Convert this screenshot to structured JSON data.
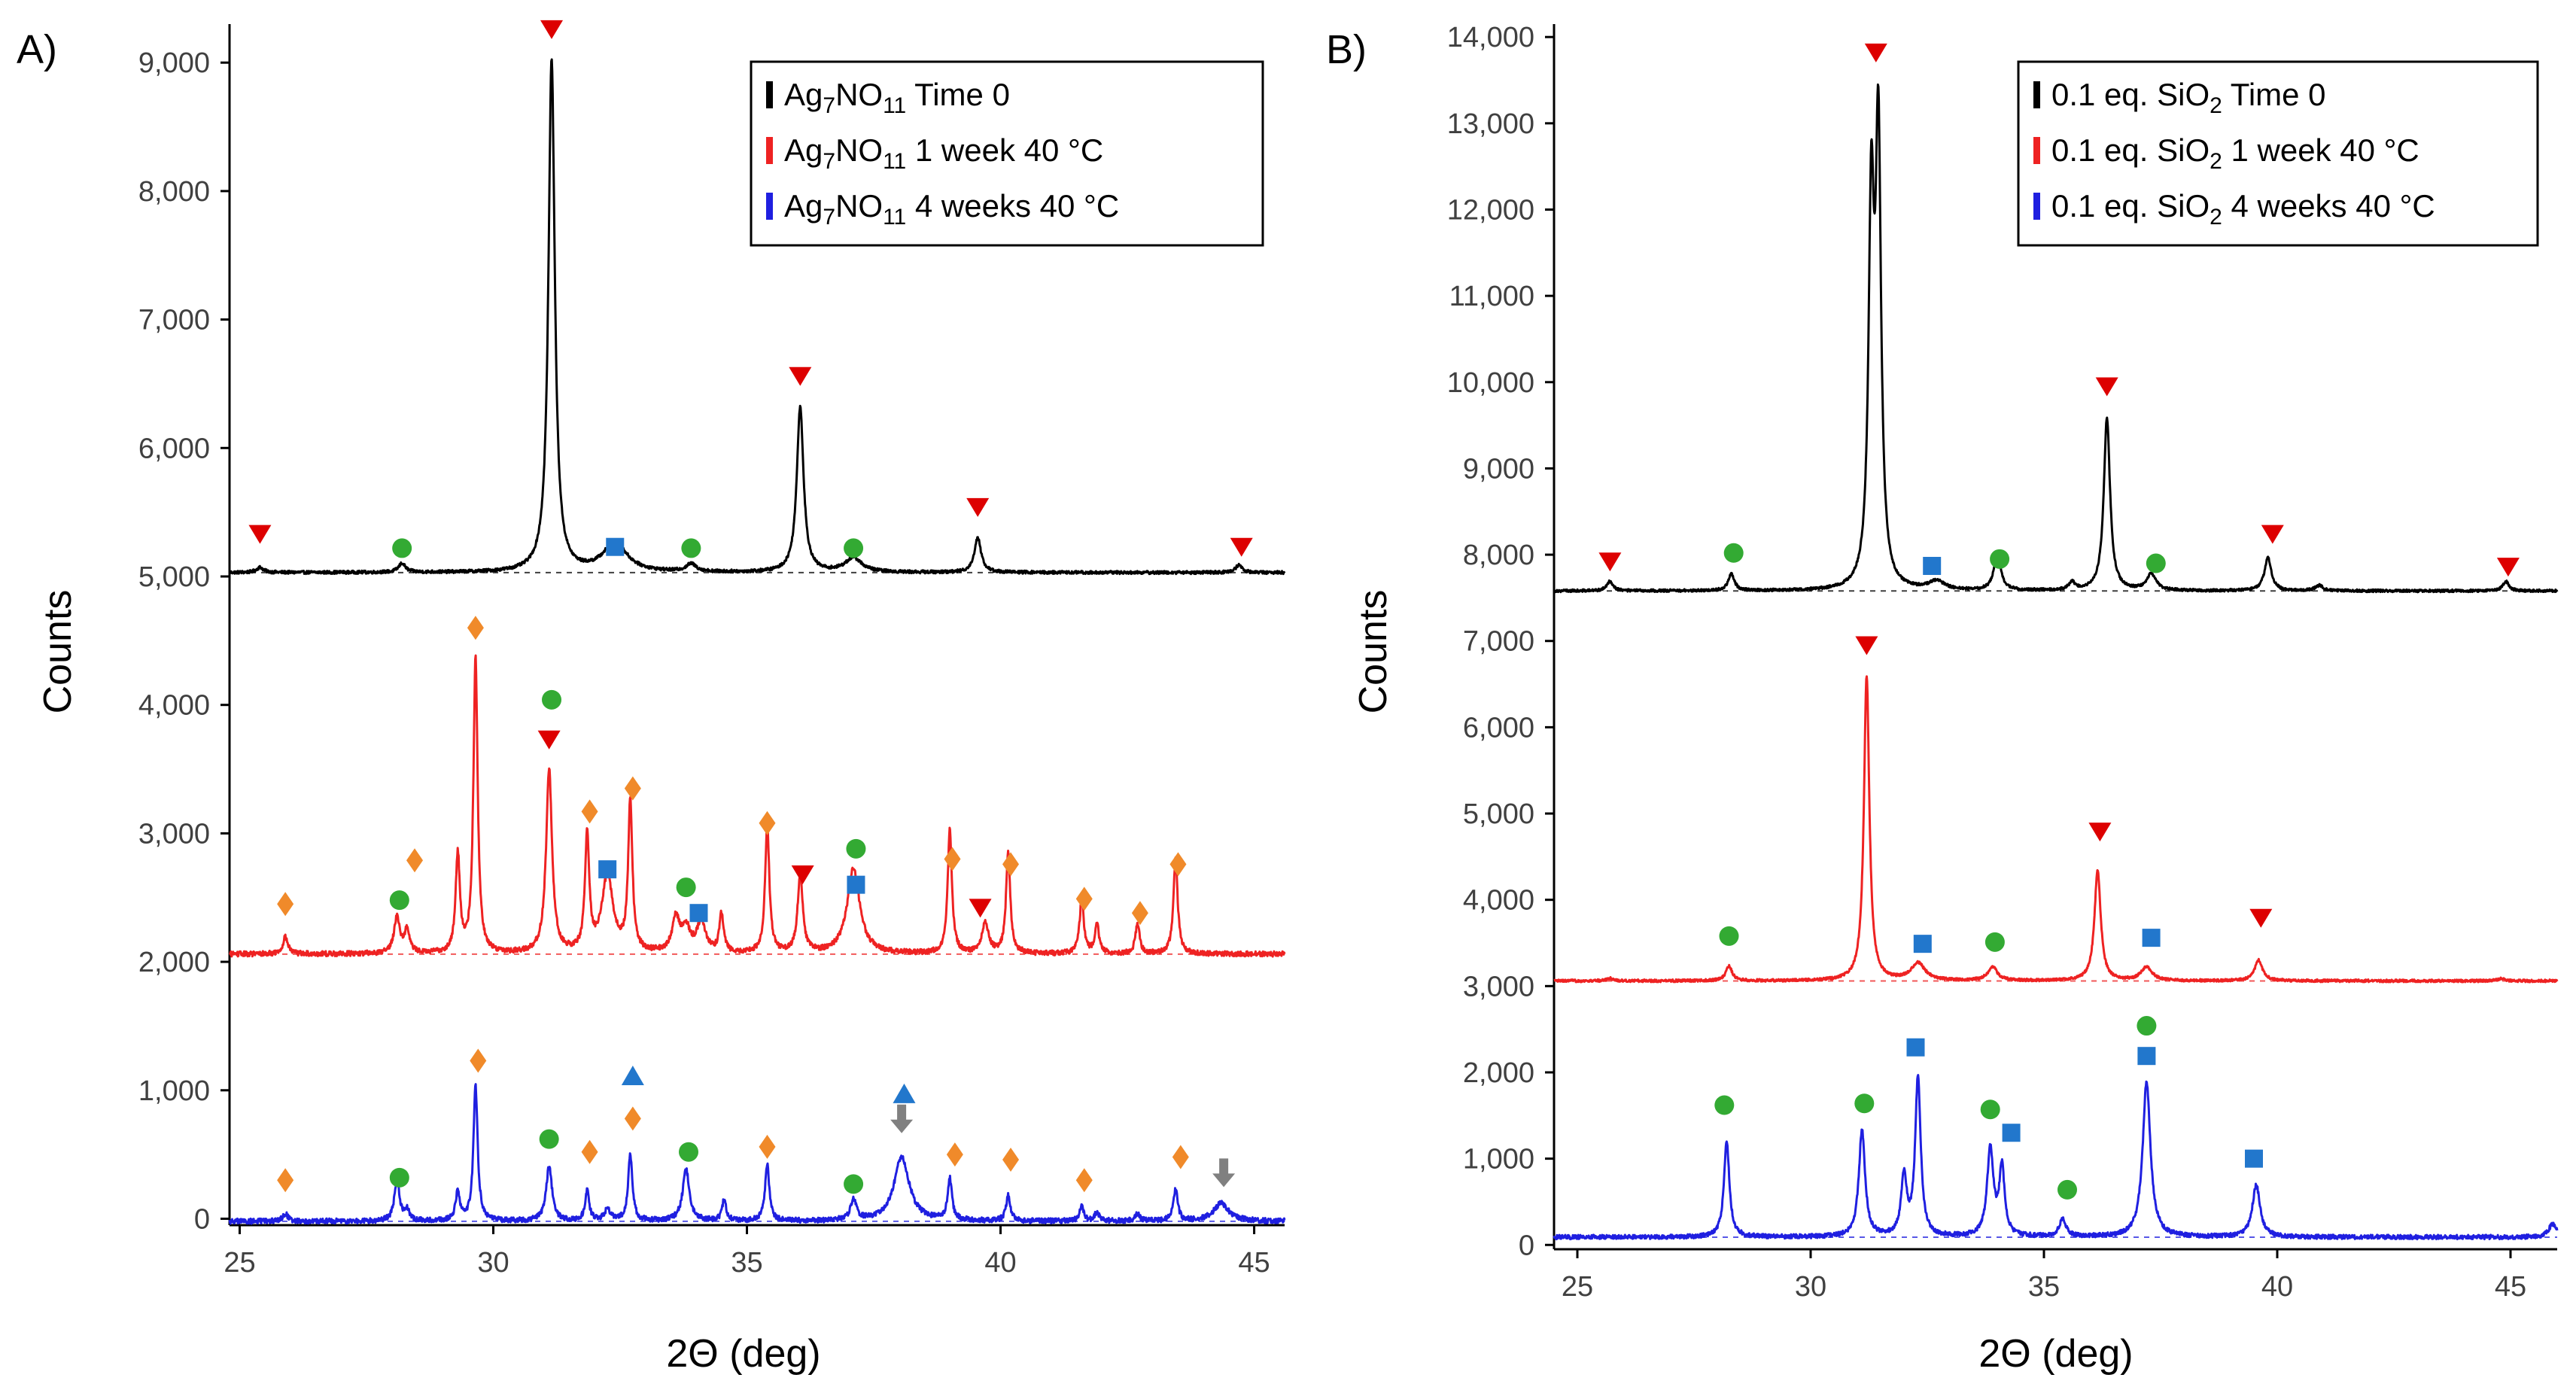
{
  "figure": "Powder X-ray diffraction patterns",
  "chart_data": [
    {
      "panel": "A)",
      "type": "line",
      "xlabel": "2Θ (deg)",
      "ylabel": "Counts",
      "xlim": [
        24.8,
        45.6
      ],
      "ylim": [
        -50,
        9300
      ],
      "xticks": [
        25,
        30,
        35,
        40,
        45
      ],
      "yticks": [
        0,
        1000,
        2000,
        3000,
        4000,
        5000,
        6000,
        7000,
        8000,
        9000
      ],
      "ytick_labels": [
        "0",
        "1,000",
        "2,000",
        "3,000",
        "4,000",
        "5,000",
        "6,000",
        "7,000",
        "8,000",
        "9,000"
      ],
      "legend": {
        "position": "top-right",
        "entries": [
          {
            "prefix": "Ag",
            "sub1": "7",
            "mid": "NO",
            "sub2": "11",
            "suffix": " Time 0",
            "color": "#000000"
          },
          {
            "prefix": "Ag",
            "sub1": "7",
            "mid": "NO",
            "sub2": "11",
            "suffix": " 1 week 40 °C",
            "color": "#ee2222"
          },
          {
            "prefix": "Ag",
            "sub1": "7",
            "mid": "NO",
            "sub2": "11",
            "suffix": " 4 weeks 40 °C",
            "color": "#1f1fe0"
          }
        ]
      },
      "series": [
        {
          "name": "Ag7NO11 Time 0",
          "color": "#000000",
          "baseline": 5030,
          "noise": 12,
          "peaks": [
            [
              25.4,
              40,
              0.08
            ],
            [
              28.2,
              70,
              0.08
            ],
            [
              31.15,
              3990,
              0.075
            ],
            [
              32.4,
              230,
              0.28
            ],
            [
              33.9,
              60,
              0.12
            ],
            [
              36.05,
              1290,
              0.08
            ],
            [
              37.1,
              110,
              0.2
            ],
            [
              39.55,
              270,
              0.08
            ],
            [
              44.7,
              60,
              0.08
            ]
          ]
        },
        {
          "name": "Ag7NO11 1 week 40 °C",
          "color": "#ee2222",
          "baseline": 2060,
          "noise": 20,
          "peaks": [
            [
              25.9,
              130,
              0.06
            ],
            [
              28.1,
              280,
              0.07
            ],
            [
              28.3,
              180,
              0.06
            ],
            [
              29.3,
              760,
              0.05
            ],
            [
              29.65,
              2300,
              0.05
            ],
            [
              31.1,
              1430,
              0.07
            ],
            [
              31.85,
              900,
              0.05
            ],
            [
              32.25,
              600,
              0.13
            ],
            [
              32.7,
              1160,
              0.05
            ],
            [
              33.6,
              260,
              0.09
            ],
            [
              33.8,
              180,
              0.1
            ],
            [
              34.1,
              240,
              0.1
            ],
            [
              34.5,
              300,
              0.05
            ],
            [
              35.4,
              1000,
              0.05
            ],
            [
              36.05,
              610,
              0.06
            ],
            [
              37.1,
              660,
              0.15
            ],
            [
              39.0,
              960,
              0.05
            ],
            [
              39.7,
              230,
              0.08
            ],
            [
              40.15,
              780,
              0.05
            ],
            [
              41.6,
              420,
              0.05
            ],
            [
              41.9,
              230,
              0.05
            ],
            [
              42.7,
              230,
              0.05
            ],
            [
              43.45,
              740,
              0.05
            ]
          ]
        },
        {
          "name": "Ag7NO11 4 weeks 40 °C",
          "color": "#1f1fe0",
          "baseline": -20,
          "noise": 20,
          "peaks": [
            [
              25.9,
              60,
              0.06
            ],
            [
              28.1,
              320,
              0.06
            ],
            [
              28.3,
              80,
              0.06
            ],
            [
              29.3,
              230,
              0.05
            ],
            [
              29.65,
              1050,
              0.05
            ],
            [
              31.1,
              420,
              0.07
            ],
            [
              31.85,
              230,
              0.05
            ],
            [
              32.25,
              90,
              0.07
            ],
            [
              32.7,
              520,
              0.05
            ],
            [
              33.8,
              400,
              0.08
            ],
            [
              34.55,
              160,
              0.05
            ],
            [
              35.4,
              440,
              0.05
            ],
            [
              37.1,
              160,
              0.07
            ],
            [
              38.05,
              500,
              0.18
            ],
            [
              39.0,
              320,
              0.05
            ],
            [
              40.15,
              200,
              0.05
            ],
            [
              41.6,
              110,
              0.05
            ],
            [
              41.9,
              70,
              0.05
            ],
            [
              42.7,
              60,
              0.05
            ],
            [
              43.45,
              250,
              0.05
            ],
            [
              44.35,
              140,
              0.18
            ]
          ]
        }
      ],
      "markers": [
        {
          "t": "tri-down",
          "c": "#dd0000",
          "x": 25.4,
          "y": 5330
        },
        {
          "t": "circle",
          "c": "#33aa33",
          "x": 28.2,
          "y": 5220
        },
        {
          "t": "tri-down",
          "c": "#dd0000",
          "x": 31.15,
          "y": 9260
        },
        {
          "t": "square",
          "c": "#2277cc",
          "x": 32.4,
          "y": 5230
        },
        {
          "t": "circle",
          "c": "#33aa33",
          "x": 33.9,
          "y": 5220
        },
        {
          "t": "tri-down",
          "c": "#dd0000",
          "x": 36.05,
          "y": 6560
        },
        {
          "t": "circle",
          "c": "#33aa33",
          "x": 37.1,
          "y": 5220
        },
        {
          "t": "tri-down",
          "c": "#dd0000",
          "x": 39.55,
          "y": 5540
        },
        {
          "t": "tri-down",
          "c": "#dd0000",
          "x": 44.75,
          "y": 5230
        },
        {
          "t": "diamond",
          "c": "#f08a2a",
          "x": 25.9,
          "y": 2450
        },
        {
          "t": "circle",
          "c": "#33aa33",
          "x": 28.15,
          "y": 2480
        },
        {
          "t": "diamond",
          "c": "#f08a2a",
          "x": 28.45,
          "y": 2790
        },
        {
          "t": "diamond",
          "c": "#f08a2a",
          "x": 29.65,
          "y": 4600
        },
        {
          "t": "circle",
          "c": "#33aa33",
          "x": 31.15,
          "y": 4040
        },
        {
          "t": "tri-down",
          "c": "#dd0000",
          "x": 31.1,
          "y": 3730
        },
        {
          "t": "diamond",
          "c": "#f08a2a",
          "x": 31.9,
          "y": 3170
        },
        {
          "t": "square",
          "c": "#2277cc",
          "x": 32.25,
          "y": 2720
        },
        {
          "t": "diamond",
          "c": "#f08a2a",
          "x": 32.75,
          "y": 3350
        },
        {
          "t": "circle",
          "c": "#33aa33",
          "x": 33.8,
          "y": 2580
        },
        {
          "t": "square",
          "c": "#2277cc",
          "x": 34.05,
          "y": 2380
        },
        {
          "t": "diamond",
          "c": "#f08a2a",
          "x": 35.4,
          "y": 3080
        },
        {
          "t": "tri-down",
          "c": "#dd0000",
          "x": 36.1,
          "y": 2680
        },
        {
          "t": "circle",
          "c": "#33aa33",
          "x": 37.15,
          "y": 2880
        },
        {
          "t": "square",
          "c": "#2277cc",
          "x": 37.15,
          "y": 2600
        },
        {
          "t": "diamond",
          "c": "#f08a2a",
          "x": 39.05,
          "y": 2800
        },
        {
          "t": "tri-down",
          "c": "#dd0000",
          "x": 39.6,
          "y": 2420
        },
        {
          "t": "diamond",
          "c": "#f08a2a",
          "x": 40.2,
          "y": 2760
        },
        {
          "t": "diamond",
          "c": "#f08a2a",
          "x": 41.65,
          "y": 2490
        },
        {
          "t": "diamond",
          "c": "#f08a2a",
          "x": 42.75,
          "y": 2380
        },
        {
          "t": "diamond",
          "c": "#f08a2a",
          "x": 43.5,
          "y": 2760
        },
        {
          "t": "diamond",
          "c": "#f08a2a",
          "x": 25.9,
          "y": 300
        },
        {
          "t": "circle",
          "c": "#33aa33",
          "x": 28.15,
          "y": 320
        },
        {
          "t": "diamond",
          "c": "#f08a2a",
          "x": 29.7,
          "y": 1230
        },
        {
          "t": "circle",
          "c": "#33aa33",
          "x": 31.1,
          "y": 620
        },
        {
          "t": "diamond",
          "c": "#f08a2a",
          "x": 31.9,
          "y": 520
        },
        {
          "t": "tri-up",
          "c": "#2277cc",
          "x": 32.75,
          "y": 1110
        },
        {
          "t": "diamond",
          "c": "#f08a2a",
          "x": 32.75,
          "y": 780
        },
        {
          "t": "circle",
          "c": "#33aa33",
          "x": 33.85,
          "y": 520
        },
        {
          "t": "diamond",
          "c": "#f08a2a",
          "x": 35.4,
          "y": 560
        },
        {
          "t": "circle",
          "c": "#33aa33",
          "x": 37.1,
          "y": 270
        },
        {
          "t": "tri-up",
          "c": "#2277cc",
          "x": 38.1,
          "y": 970
        },
        {
          "t": "arrow-down",
          "c": "#808080",
          "x": 38.05,
          "y": 760
        },
        {
          "t": "diamond",
          "c": "#f08a2a",
          "x": 39.1,
          "y": 500
        },
        {
          "t": "diamond",
          "c": "#f08a2a",
          "x": 40.2,
          "y": 460
        },
        {
          "t": "diamond",
          "c": "#f08a2a",
          "x": 41.65,
          "y": 300
        },
        {
          "t": "diamond",
          "c": "#f08a2a",
          "x": 43.55,
          "y": 480
        },
        {
          "t": "arrow-down",
          "c": "#808080",
          "x": 44.4,
          "y": 340
        }
      ]
    },
    {
      "panel": "B)",
      "type": "line",
      "xlabel": "2Θ (deg)",
      "ylabel": "Counts",
      "xlim": [
        24.5,
        46.0
      ],
      "ylim": [
        -50,
        14150
      ],
      "xticks": [
        25,
        30,
        35,
        40,
        45
      ],
      "yticks": [
        0,
        1000,
        2000,
        3000,
        4000,
        5000,
        6000,
        7000,
        8000,
        9000,
        10000,
        11000,
        12000,
        13000,
        14000
      ],
      "ytick_labels": [
        "0",
        "1,000",
        "2,000",
        "3,000",
        "4,000",
        "5,000",
        "6,000",
        "7,000",
        "8,000",
        "9,000",
        "10,000",
        "11,000",
        "12,000",
        "13,000",
        "14,000"
      ],
      "legend": {
        "position": "top-right",
        "entries": [
          {
            "prefix": "0.1 eq. SiO",
            "sub1": "2",
            "mid": "",
            "sub2": "",
            "suffix": " Time 0",
            "color": "#000000"
          },
          {
            "prefix": "0.1 eq. SiO",
            "sub1": "2",
            "mid": "",
            "sub2": "",
            "suffix": " 1 week 40 °C",
            "color": "#ee2222"
          },
          {
            "prefix": "0.1 eq. SiO",
            "sub1": "2",
            "mid": "",
            "sub2": "",
            "suffix": " 4 weeks 40 °C",
            "color": "#1f1fe0"
          }
        ]
      },
      "series": [
        {
          "name": "0.1 eq. SiO2 Time 0",
          "color": "#000000",
          "baseline": 7580,
          "noise": 15,
          "peaks": [
            [
              25.7,
              110,
              0.08
            ],
            [
              28.3,
              190,
              0.08
            ],
            [
              31.3,
              4300,
              0.07
            ],
            [
              31.45,
              5100,
              0.07
            ],
            [
              32.7,
              100,
              0.2
            ],
            [
              34.0,
              410,
              0.09
            ],
            [
              35.6,
              90,
              0.08
            ],
            [
              36.35,
              2000,
              0.08
            ],
            [
              37.3,
              190,
              0.12
            ],
            [
              39.8,
              380,
              0.09
            ],
            [
              40.9,
              60,
              0.1
            ],
            [
              44.9,
              110,
              0.08
            ]
          ]
        },
        {
          "name": "0.1 eq. SiO2 1 week 40 °C",
          "color": "#ee2222",
          "baseline": 3060,
          "noise": 15,
          "peaks": [
            [
              25.7,
              30,
              0.08
            ],
            [
              28.25,
              170,
              0.08
            ],
            [
              31.2,
              3530,
              0.07
            ],
            [
              32.3,
              200,
              0.18
            ],
            [
              33.9,
              160,
              0.12
            ],
            [
              36.15,
              1280,
              0.08
            ],
            [
              37.2,
              160,
              0.14
            ],
            [
              39.6,
              240,
              0.1
            ],
            [
              44.8,
              30,
              0.08
            ]
          ]
        },
        {
          "name": "0.1 eq. SiO2 4 weeks 40 °C",
          "color": "#1f1fe0",
          "baseline": 90,
          "noise": 25,
          "peaks": [
            [
              28.2,
              1100,
              0.07
            ],
            [
              31.1,
              1230,
              0.08
            ],
            [
              32.0,
              700,
              0.07
            ],
            [
              32.3,
              1850,
              0.07
            ],
            [
              33.85,
              1020,
              0.08
            ],
            [
              34.1,
              780,
              0.07
            ],
            [
              35.4,
              200,
              0.09
            ],
            [
              37.2,
              1800,
              0.1
            ],
            [
              39.55,
              600,
              0.1
            ],
            [
              45.9,
              150,
              0.1
            ]
          ]
        }
      ],
      "markers": [
        {
          "t": "tri-down",
          "c": "#dd0000",
          "x": 25.7,
          "y": 7920
        },
        {
          "t": "circle",
          "c": "#33aa33",
          "x": 28.35,
          "y": 8020
        },
        {
          "t": "tri-down",
          "c": "#dd0000",
          "x": 31.4,
          "y": 13820
        },
        {
          "t": "square",
          "c": "#2277cc",
          "x": 32.6,
          "y": 7870
        },
        {
          "t": "circle",
          "c": "#33aa33",
          "x": 34.05,
          "y": 7950
        },
        {
          "t": "tri-down",
          "c": "#dd0000",
          "x": 36.35,
          "y": 9950
        },
        {
          "t": "circle",
          "c": "#33aa33",
          "x": 37.4,
          "y": 7900
        },
        {
          "t": "tri-down",
          "c": "#dd0000",
          "x": 39.9,
          "y": 8240
        },
        {
          "t": "tri-down",
          "c": "#dd0000",
          "x": 44.95,
          "y": 7860
        },
        {
          "t": "circle",
          "c": "#33aa33",
          "x": 28.25,
          "y": 3580
        },
        {
          "t": "tri-down",
          "c": "#dd0000",
          "x": 31.2,
          "y": 6950
        },
        {
          "t": "square",
          "c": "#2277cc",
          "x": 32.4,
          "y": 3490
        },
        {
          "t": "circle",
          "c": "#33aa33",
          "x": 33.95,
          "y": 3510
        },
        {
          "t": "tri-down",
          "c": "#dd0000",
          "x": 36.2,
          "y": 4790
        },
        {
          "t": "square",
          "c": "#2277cc",
          "x": 37.3,
          "y": 3560
        },
        {
          "t": "tri-down",
          "c": "#dd0000",
          "x": 39.65,
          "y": 3790
        },
        {
          "t": "circle",
          "c": "#33aa33",
          "x": 28.15,
          "y": 1620
        },
        {
          "t": "circle",
          "c": "#33aa33",
          "x": 31.15,
          "y": 1640
        },
        {
          "t": "square",
          "c": "#2277cc",
          "x": 32.25,
          "y": 2290
        },
        {
          "t": "circle",
          "c": "#33aa33",
          "x": 33.85,
          "y": 1570
        },
        {
          "t": "square",
          "c": "#2277cc",
          "x": 34.3,
          "y": 1300
        },
        {
          "t": "circle",
          "c": "#33aa33",
          "x": 35.5,
          "y": 640
        },
        {
          "t": "circle",
          "c": "#33aa33",
          "x": 37.2,
          "y": 2540
        },
        {
          "t": "square",
          "c": "#2277cc",
          "x": 37.2,
          "y": 2190
        },
        {
          "t": "square",
          "c": "#2277cc",
          "x": 39.5,
          "y": 1000
        }
      ]
    }
  ]
}
